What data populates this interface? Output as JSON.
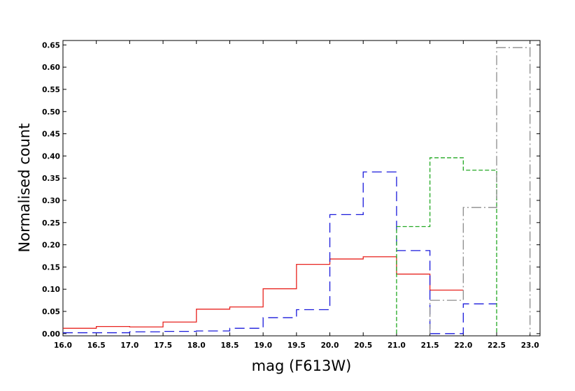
{
  "chart_data": {
    "type": "line",
    "step": true,
    "title": "",
    "xlabel": "mag (F613W)",
    "ylabel": "Normalised count",
    "xlim": [
      16.0,
      23.15
    ],
    "ylim": [
      -0.005,
      0.66
    ],
    "xticks": [
      16.0,
      16.5,
      17.0,
      17.5,
      18.0,
      18.5,
      19.0,
      19.5,
      20.0,
      20.5,
      21.0,
      21.5,
      22.0,
      22.5,
      23.0
    ],
    "xtick_labels": [
      "16.0",
      "16.5",
      "17.0",
      "17.5",
      "18.0",
      "18.5",
      "19.0",
      "19.5",
      "20.0",
      "20.5",
      "21.0",
      "21.5",
      "22.0",
      "22.5",
      "23.0"
    ],
    "yticks": [
      0.0,
      0.05,
      0.1,
      0.15,
      0.2,
      0.25,
      0.3,
      0.35,
      0.4,
      0.45,
      0.5,
      0.55,
      0.6,
      0.65
    ],
    "ytick_labels": [
      "0.00",
      "0.05",
      "0.10",
      "0.15",
      "0.20",
      "0.25",
      "0.30",
      "0.35",
      "0.40",
      "0.45",
      "0.50",
      "0.55",
      "0.60",
      "0.65"
    ],
    "grid": false,
    "legend": "none",
    "series": [
      {
        "color": "#e8231f",
        "dash": "solid",
        "bin_edges": [
          16.0,
          16.5,
          17.0,
          17.5,
          18.0,
          18.5,
          19.0,
          19.5,
          20.0,
          20.5,
          21.0,
          21.5,
          22.0
        ],
        "values": [
          0.012,
          0.016,
          0.015,
          0.026,
          0.055,
          0.06,
          0.101,
          0.156,
          0.168,
          0.173,
          0.134,
          0.098
        ]
      },
      {
        "color": "#1a1adb",
        "dash": "long-dash",
        "bin_edges": [
          16.0,
          16.5,
          17.0,
          17.5,
          18.0,
          18.5,
          19.0,
          19.5,
          20.0,
          20.5,
          21.0,
          21.5,
          22.0,
          22.5
        ],
        "values": [
          0.002,
          0.002,
          0.004,
          0.005,
          0.006,
          0.012,
          0.036,
          0.054,
          0.268,
          0.364,
          0.187,
          0.0,
          0.067
        ]
      },
      {
        "color": "#22a822",
        "dash": "short-dash",
        "bin_edges": [
          21.0,
          21.5,
          22.0,
          22.5
        ],
        "values": [
          0.241,
          0.396,
          0.368
        ]
      },
      {
        "color": "#8c8c8c",
        "dash": "dash-dot",
        "bin_edges": [
          21.5,
          22.0,
          22.5,
          23.0
        ],
        "values": [
          0.075,
          0.284,
          0.644
        ]
      }
    ]
  }
}
